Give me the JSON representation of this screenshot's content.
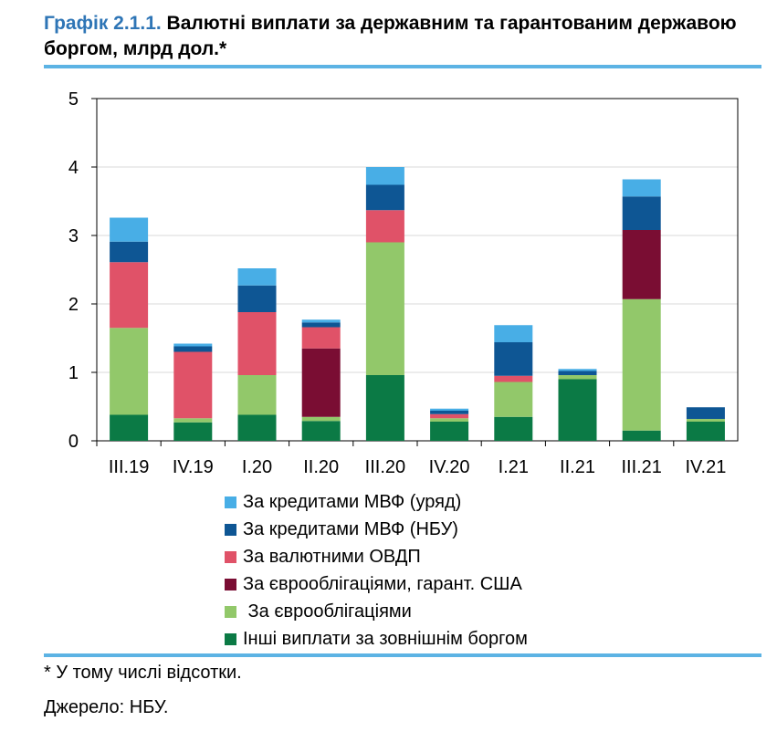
{
  "title": {
    "prefix": "Графік 2.1.1.",
    "text": " Валютні виплати за державним та гарантованим державою боргом, млрд дол.*"
  },
  "chart_data": {
    "type": "bar",
    "stacked": true,
    "categories": [
      "III.19",
      "IV.19",
      "I.20",
      "II.20",
      "III.20",
      "IV.20",
      "I.21",
      "II.21",
      "III.21",
      "IV.21"
    ],
    "ylim": [
      0,
      5
    ],
    "yticks": [
      "0",
      "1",
      "2",
      "3",
      "4",
      "5"
    ],
    "grid": true,
    "legend_position": "bottom",
    "series": [
      {
        "key": "other",
        "name": "Інші виплати за зовнішнім боргом",
        "color": "#0b7a45",
        "values": [
          0.38,
          0.27,
          0.38,
          0.29,
          0.96,
          0.28,
          0.35,
          0.9,
          0.15,
          0.28
        ]
      },
      {
        "key": "eurobonds",
        "name": " За єврооблігаціями",
        "color": "#92c86a",
        "values": [
          1.27,
          0.06,
          0.58,
          0.06,
          1.94,
          0.05,
          0.51,
          0.06,
          1.92,
          0.04
        ]
      },
      {
        "key": "eurobonds_us",
        "name": "За єврооблігаціями, гарант. США",
        "color": "#7a0d33",
        "values": [
          0,
          0,
          0,
          1.0,
          0,
          0,
          0,
          0,
          1.01,
          0
        ]
      },
      {
        "key": "ovdp",
        "name": "За валютними ОВДП",
        "color": "#e05268",
        "values": [
          0.96,
          0.97,
          0.92,
          0.31,
          0.47,
          0.06,
          0.09,
          0,
          0,
          0
        ]
      },
      {
        "key": "imf_nbu",
        "name": "За кредитами МВФ (НБУ)",
        "color": "#0e5694",
        "values": [
          0.3,
          0.08,
          0.39,
          0.07,
          0.37,
          0.05,
          0.49,
          0.06,
          0.49,
          0.17
        ]
      },
      {
        "key": "imf_gov",
        "name": "За кредитами МВФ (уряд)",
        "color": "#48aee6",
        "values": [
          0.35,
          0.04,
          0.25,
          0.04,
          0.26,
          0.03,
          0.25,
          0.03,
          0.25,
          0
        ]
      }
    ]
  },
  "notes": {
    "footnote": "* У тому числі відсотки.",
    "source": "Джерело: НБУ."
  }
}
